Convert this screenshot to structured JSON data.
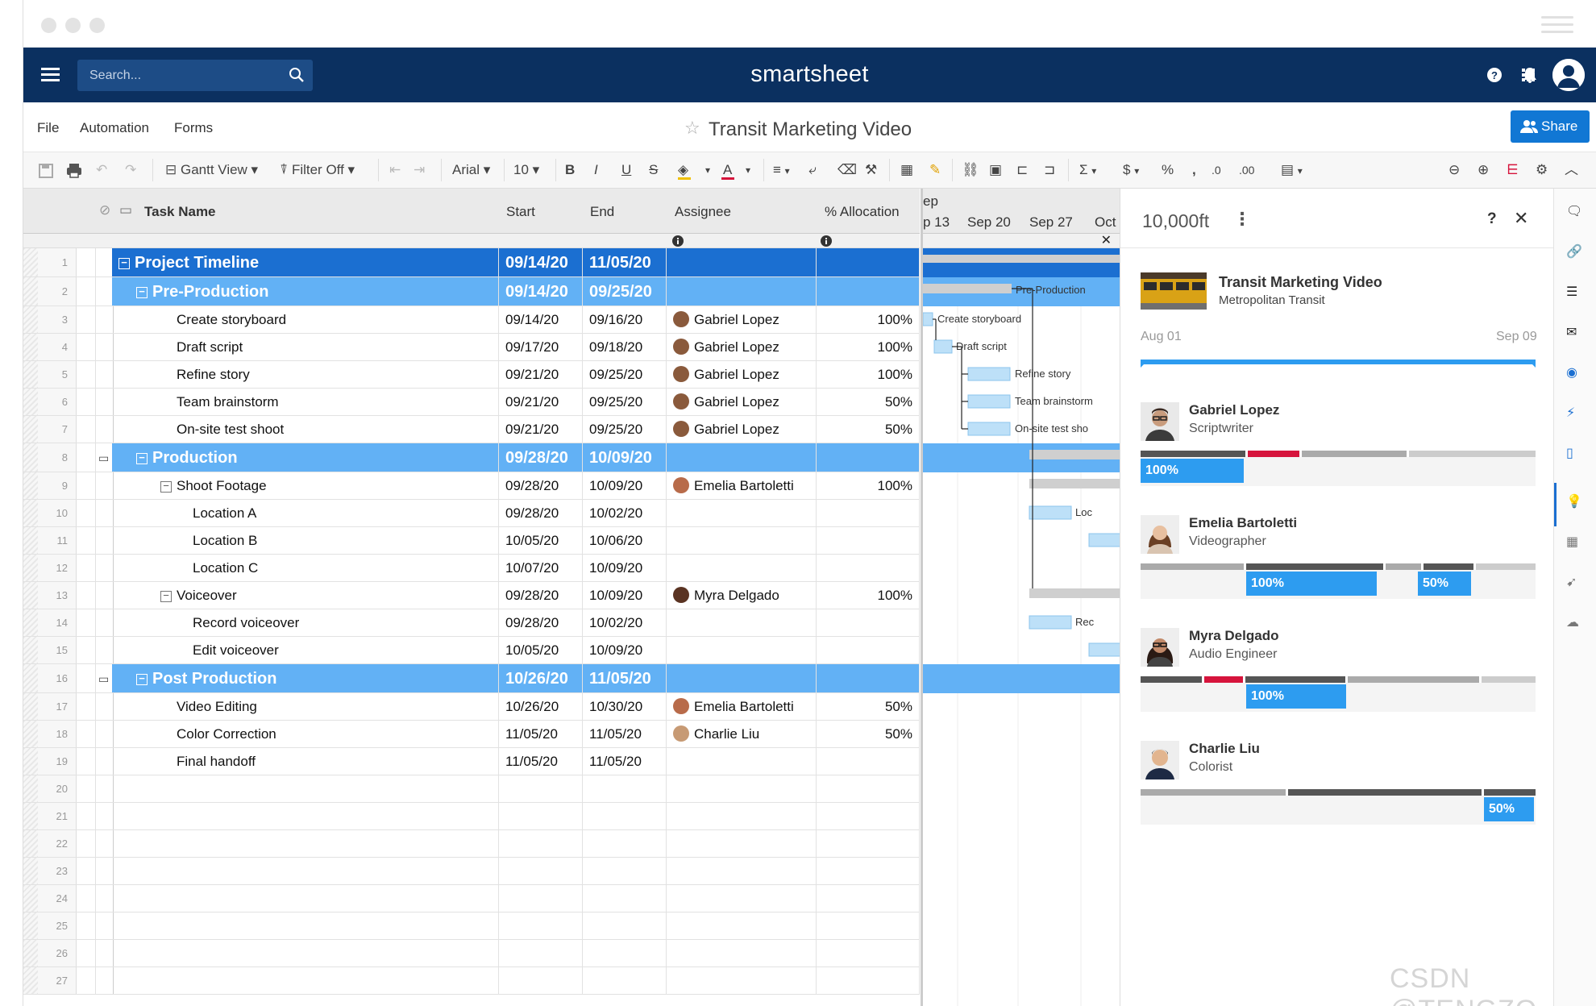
{
  "nav": {
    "search_placeholder": "Search...",
    "brand": "smartsheet"
  },
  "menu": {
    "file": "File",
    "automation": "Automation",
    "forms": "Forms",
    "title": "Transit Marketing Video",
    "share": "Share"
  },
  "toolbar": {
    "view": "Gantt View",
    "filter": "Filter Off",
    "font": "Arial",
    "size": "10",
    "bold": "B",
    "italic": "I",
    "underline": "U",
    "strike": "S",
    "font_color": "A",
    "sum": "Σ",
    "currency": "$",
    "percent": "%",
    "comma": ",",
    "decimal_less": ".0",
    "decimal_more": ".00"
  },
  "columns": {
    "task": "Task Name",
    "start": "Start",
    "end": "End",
    "assignee": "Assignee",
    "alloc": "% Allocation"
  },
  "gantt_header": {
    "month": "ep",
    "weeks": [
      "p 13",
      "Sep 20",
      "Sep 27",
      "Oct"
    ]
  },
  "rows": [
    {
      "n": "1",
      "task": "Project Timeline",
      "start": "09/14/20",
      "end": "11/05/20",
      "assignee": "",
      "alloc": "",
      "level": 0,
      "comment": false
    },
    {
      "n": "2",
      "task": "Pre-Production",
      "start": "09/14/20",
      "end": "09/25/20",
      "assignee": "",
      "alloc": "",
      "level": 1,
      "comment": false
    },
    {
      "n": "3",
      "task": "Create storyboard",
      "start": "09/14/20",
      "end": "09/16/20",
      "assignee": "Gabriel Lopez",
      "alloc": "100%",
      "level": 2,
      "comment": false
    },
    {
      "n": "4",
      "task": "Draft script",
      "start": "09/17/20",
      "end": "09/18/20",
      "assignee": "Gabriel Lopez",
      "alloc": "100%",
      "level": 2,
      "comment": false
    },
    {
      "n": "5",
      "task": "Refine story",
      "start": "09/21/20",
      "end": "09/25/20",
      "assignee": "Gabriel Lopez",
      "alloc": "100%",
      "level": 2,
      "comment": false
    },
    {
      "n": "6",
      "task": "Team brainstorm",
      "start": "09/21/20",
      "end": "09/25/20",
      "assignee": "Gabriel Lopez",
      "alloc": "50%",
      "level": 2,
      "comment": false
    },
    {
      "n": "7",
      "task": "On-site test shoot",
      "start": "09/21/20",
      "end": "09/25/20",
      "assignee": "Gabriel Lopez",
      "alloc": "50%",
      "level": 2,
      "comment": false
    },
    {
      "n": "8",
      "task": "Production",
      "start": "09/28/20",
      "end": "10/09/20",
      "assignee": "",
      "alloc": "",
      "level": 1,
      "comment": true
    },
    {
      "n": "9",
      "task": "Shoot Footage",
      "start": "09/28/20",
      "end": "10/09/20",
      "assignee": "Emelia Bartoletti",
      "alloc": "100%",
      "level": 3,
      "comment": false
    },
    {
      "n": "10",
      "task": "Location A",
      "start": "09/28/20",
      "end": "10/02/20",
      "assignee": "",
      "alloc": "",
      "level": 4,
      "comment": false
    },
    {
      "n": "11",
      "task": "Location B",
      "start": "10/05/20",
      "end": "10/06/20",
      "assignee": "",
      "alloc": "",
      "level": 4,
      "comment": false
    },
    {
      "n": "12",
      "task": "Location C",
      "start": "10/07/20",
      "end": "10/09/20",
      "assignee": "",
      "alloc": "",
      "level": 4,
      "comment": false
    },
    {
      "n": "13",
      "task": "Voiceover",
      "start": "09/28/20",
      "end": "10/09/20",
      "assignee": "Myra Delgado",
      "alloc": "100%",
      "level": 3,
      "comment": false
    },
    {
      "n": "14",
      "task": "Record voiceover",
      "start": "09/28/20",
      "end": "10/02/20",
      "assignee": "",
      "alloc": "",
      "level": 4,
      "comment": false
    },
    {
      "n": "15",
      "task": "Edit voiceover",
      "start": "10/05/20",
      "end": "10/09/20",
      "assignee": "",
      "alloc": "",
      "level": 4,
      "comment": false
    },
    {
      "n": "16",
      "task": "Post Production",
      "start": "10/26/20",
      "end": "11/05/20",
      "assignee": "",
      "alloc": "",
      "level": 1,
      "comment": true
    },
    {
      "n": "17",
      "task": "Video Editing",
      "start": "10/26/20",
      "end": "10/30/20",
      "assignee": "Emelia Bartoletti",
      "alloc": "50%",
      "level": 2,
      "comment": false
    },
    {
      "n": "18",
      "task": "Color Correction",
      "start": "11/05/20",
      "end": "11/05/20",
      "assignee": "Charlie Liu",
      "alloc": "50%",
      "level": 2,
      "comment": false
    },
    {
      "n": "19",
      "task": "Final handoff",
      "start": "11/05/20",
      "end": "11/05/20",
      "assignee": "",
      "alloc": "",
      "level": 2,
      "comment": false
    },
    {
      "n": "20",
      "task": "",
      "start": "",
      "end": "",
      "assignee": "",
      "alloc": "",
      "level": 2,
      "comment": false
    },
    {
      "n": "21",
      "task": "",
      "start": "",
      "end": "",
      "assignee": "",
      "alloc": "",
      "level": 2,
      "comment": false
    },
    {
      "n": "22",
      "task": "",
      "start": "",
      "end": "",
      "assignee": "",
      "alloc": "",
      "level": 2,
      "comment": false
    },
    {
      "n": "23",
      "task": "",
      "start": "",
      "end": "",
      "assignee": "",
      "alloc": "",
      "level": 2,
      "comment": false
    },
    {
      "n": "24",
      "task": "",
      "start": "",
      "end": "",
      "assignee": "",
      "alloc": "",
      "level": 2,
      "comment": false
    },
    {
      "n": "25",
      "task": "",
      "start": "",
      "end": "",
      "assignee": "",
      "alloc": "",
      "level": 2,
      "comment": false
    },
    {
      "n": "26",
      "task": "",
      "start": "",
      "end": "",
      "assignee": "",
      "alloc": "",
      "level": 2,
      "comment": false
    },
    {
      "n": "27",
      "task": "",
      "start": "",
      "end": "",
      "assignee": "",
      "alloc": "",
      "level": 2,
      "comment": false
    }
  ],
  "gantt_labels": {
    "preprod": "Pre-Production",
    "storyboard": "Create storyboard",
    "draft": "Draft script",
    "refine": "Refine story",
    "brainstorm": "Team brainstorm",
    "onsite": "On-site test sho",
    "loc": "Loc",
    "rec": "Rec"
  },
  "panel": {
    "app_name": "10,000ft",
    "help": "?",
    "project_name": "Transit Marketing Video",
    "client": "Metropolitan Transit",
    "start_label": "Aug 01",
    "end_label": "Sep 09",
    "people": [
      {
        "name": "Gabriel Lopez",
        "role": "Scriptwriter",
        "allocations": [
          "100%"
        ]
      },
      {
        "name": "Emelia Bartoletti",
        "role": "Videographer",
        "allocations": [
          "100%",
          "50%"
        ]
      },
      {
        "name": "Myra Delgado",
        "role": "Audio Engineer",
        "allocations": [
          "100%"
        ]
      },
      {
        "name": "Charlie Liu",
        "role": "Colorist",
        "allocations": [
          "50%"
        ]
      }
    ]
  },
  "colors": {
    "nav": "#0b3060",
    "parent_row": "#1b6fd1",
    "section_row": "#62b1f5",
    "accent": "#2d9cf0",
    "share": "#1177d4",
    "overalloc": "#d6143c"
  },
  "watermark": "CSDN @TENGZO"
}
